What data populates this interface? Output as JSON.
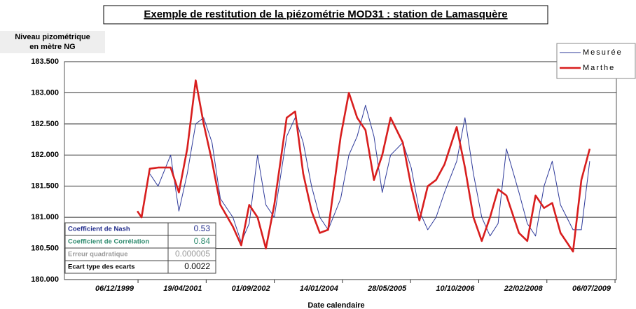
{
  "chart_data": {
    "type": "line",
    "title": "Exemple de restitution de la piézométrie MOD31 : station de Lamasquère",
    "ylabel": [
      "Niveau pizométrique",
      "en mètre NG"
    ],
    "xlabel": "Date calendaire",
    "x": [
      "1999-12-01",
      "2000-01-01",
      "2000-03-01",
      "2000-05-01",
      "2000-08-01",
      "2000-10-01",
      "2000-12-01",
      "2001-02-01",
      "2001-04-01",
      "2001-06-01",
      "2001-08-01",
      "2001-11-01",
      "2002-01-01",
      "2002-03-01",
      "2002-05-01",
      "2002-07-01",
      "2002-09-01",
      "2002-12-01",
      "2003-02-01",
      "2003-04-01",
      "2003-06-01",
      "2003-08-01",
      "2003-10-01",
      "2004-01-01",
      "2004-03-01",
      "2004-05-01",
      "2004-07-01",
      "2004-09-01",
      "2004-11-01",
      "2005-01-01",
      "2005-04-01",
      "2005-06-01",
      "2005-08-01",
      "2005-10-01",
      "2005-12-01",
      "2006-02-01",
      "2006-05-01",
      "2006-07-01",
      "2006-09-01",
      "2006-11-01",
      "2007-01-01",
      "2007-03-01",
      "2007-05-01",
      "2007-08-01",
      "2007-10-01",
      "2007-12-01",
      "2008-02-01",
      "2008-04-01",
      "2008-06-01",
      "2008-09-01",
      "2008-11-01",
      "2009-01-01"
    ],
    "series": [
      {
        "name": "Mesurée",
        "color": "#2e3a9a",
        "values": [
          null,
          null,
          181.7,
          181.5,
          182.0,
          181.1,
          181.7,
          182.5,
          182.6,
          182.2,
          181.3,
          181.0,
          180.6,
          180.9,
          182.0,
          181.2,
          181.0,
          182.3,
          182.6,
          182.2,
          181.5,
          181.0,
          180.8,
          181.3,
          182.0,
          182.3,
          182.8,
          182.3,
          181.4,
          182.0,
          182.2,
          181.8,
          181.1,
          180.8,
          181.0,
          181.4,
          181.9,
          182.6,
          181.7,
          181.0,
          180.7,
          180.9,
          182.1,
          181.4,
          180.9,
          180.7,
          181.5,
          181.9,
          181.2,
          180.8,
          180.8,
          181.9
        ]
      },
      {
        "name": "Marthe",
        "color": "#d81e1e",
        "values": [
          181.1,
          181.0,
          181.78,
          181.8,
          181.8,
          181.4,
          182.1,
          183.2,
          182.5,
          181.9,
          181.2,
          180.85,
          180.55,
          181.2,
          181.0,
          180.5,
          181.2,
          182.6,
          182.7,
          181.7,
          181.1,
          180.75,
          180.8,
          182.3,
          183.0,
          182.6,
          182.4,
          181.6,
          182.0,
          182.6,
          182.2,
          181.5,
          180.95,
          181.5,
          181.6,
          181.85,
          182.45,
          181.8,
          181.0,
          180.62,
          181.0,
          181.45,
          181.35,
          180.75,
          180.62,
          181.35,
          181.15,
          181.23,
          180.75,
          180.45,
          181.6,
          182.1
        ]
      }
    ],
    "xlim": [
      "1998-06-14",
      "2009-07-16"
    ],
    "xticks": [
      {
        "value": "1999-12-06",
        "label": "06/12/1999"
      },
      {
        "value": "2001-04-19",
        "label": "19/04/2001"
      },
      {
        "value": "2002-09-01",
        "label": "01/09/2002"
      },
      {
        "value": "2004-01-14",
        "label": "14/01/2004"
      },
      {
        "value": "2005-05-28",
        "label": "28/05/2005"
      },
      {
        "value": "2006-10-10",
        "label": "10/10/2006"
      },
      {
        "value": "2008-02-22",
        "label": "22/02/2008"
      },
      {
        "value": "2009-07-06",
        "label": "06/07/2009"
      }
    ],
    "ylim": [
      180,
      183.5
    ],
    "yticks": [
      {
        "value": 180,
        "label": "180.000"
      },
      {
        "value": 180.5,
        "label": "180.500"
      },
      {
        "value": 181,
        "label": "181.000"
      },
      {
        "value": 181.5,
        "label": "181.500"
      },
      {
        "value": 182,
        "label": "182.000"
      },
      {
        "value": 182.5,
        "label": "182.500"
      },
      {
        "value": 183,
        "label": "183.000"
      },
      {
        "value": 183.5,
        "label": "183.500"
      }
    ],
    "grid": true,
    "legend": "top-right"
  },
  "table": {
    "rows": [
      [
        "Coefficient de Nash",
        "0.53"
      ],
      [
        "Coefficient de Corrélation",
        "0.84"
      ],
      [
        "Erreur quadratique",
        "0.000005"
      ],
      [
        "Ecart type des ecarts",
        "0.0022"
      ]
    ],
    "colors": [
      "#1f2a8a",
      "#2e8b6e",
      "#999999",
      "#000000"
    ]
  }
}
